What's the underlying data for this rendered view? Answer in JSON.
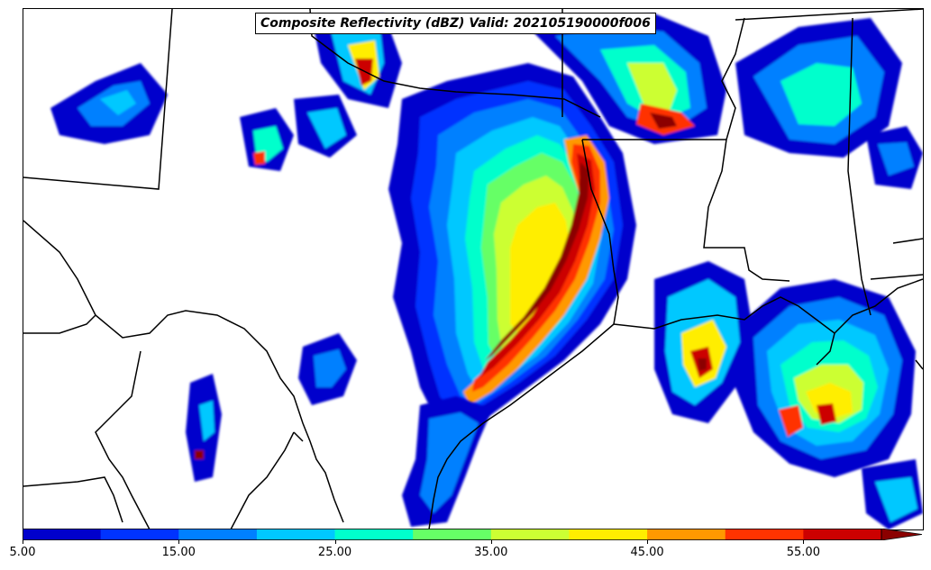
{
  "title": "Composite Reflectivity (dBZ) Valid: 202105190000f006",
  "colorbar": {
    "tick_labels": [
      "5.00",
      "15.00",
      "25.00",
      "35.00",
      "45.00",
      "55.00"
    ],
    "tick_values": [
      5,
      15,
      25,
      35,
      45,
      55
    ],
    "levels": [
      5,
      10,
      15,
      20,
      25,
      30,
      35,
      40,
      45,
      50,
      55
    ],
    "colors": [
      "#0000cc",
      "#0033ff",
      "#0080ff",
      "#00c8ff",
      "#00ffcc",
      "#66ff66",
      "#ccff33",
      "#ffee00",
      "#ff9900",
      "#ff3300",
      "#cc0000",
      "#8b0000"
    ],
    "extend": "max"
  },
  "map": {
    "boundary_color": "#000000",
    "background_color": "#ffffff"
  }
}
